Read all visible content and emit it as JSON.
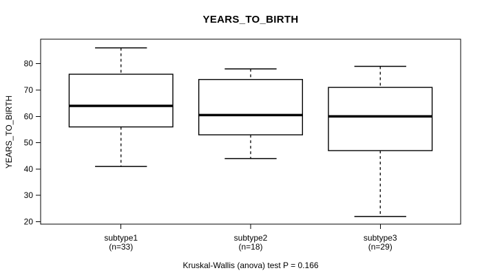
{
  "chart_data": {
    "type": "boxplot",
    "title": "YEARS_TO_BIRTH",
    "ylabel": "YEARS_TO_BIRTH",
    "xlabel": "",
    "caption": "Kruskal-Wallis (anova) test P = 0.166",
    "ylim": [
      19.1,
      89.3
    ],
    "yticks": [
      20,
      30,
      40,
      50,
      60,
      70,
      80
    ],
    "xlim": [
      0.38,
      3.62
    ],
    "box_width": 0.8,
    "grid": false,
    "legend": null,
    "groups": [
      {
        "label": "subtype1",
        "sublabel": "(n=33)",
        "n": 33,
        "position": 1,
        "whisker_low": 41,
        "q1": 56,
        "median": 64,
        "q3": 76,
        "whisker_high": 86
      },
      {
        "label": "subtype2",
        "sublabel": "(n=18)",
        "n": 18,
        "position": 2,
        "whisker_low": 44,
        "q1": 53,
        "median": 60.5,
        "q3": 74,
        "whisker_high": 78
      },
      {
        "label": "subtype3",
        "sublabel": "(n=29)",
        "n": 29,
        "position": 3,
        "whisker_low": 22,
        "q1": 47,
        "median": 60,
        "q3": 71,
        "whisker_high": 79
      }
    ],
    "colors": {
      "line": "#000000",
      "box_fill": "#ffffff",
      "background": "#ffffff",
      "text": "#000000"
    }
  }
}
